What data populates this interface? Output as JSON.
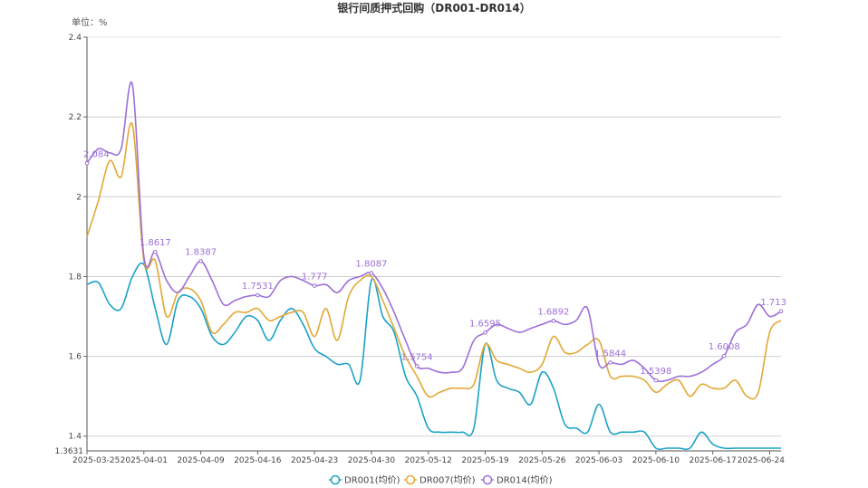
{
  "chart_data": {
    "type": "line",
    "title": "银行间质押式回购（DR001-DR014）",
    "unit_label": "单位：%",
    "ylim": [
      1.3631,
      2.4
    ],
    "y_ticks": [
      1.4,
      1.6,
      1.8,
      2,
      2.2,
      2.4
    ],
    "y_tick_labels": [
      "1.4",
      "1.6",
      "1.8",
      "2",
      "2.2",
      "2.4"
    ],
    "y_min_label": "1.3631",
    "grid": true,
    "legend_position": "bottom",
    "x_tick_labels": [
      "2025-03-25",
      "2025-04-01",
      "2025-04-09",
      "2025-04-16",
      "2025-04-23",
      "2025-04-30",
      "2025-05-12",
      "2025-05-19",
      "2025-05-26",
      "2025-06-03",
      "2025-06-10",
      "2025-06-17",
      "2025-06-24"
    ],
    "n_points": 62,
    "x_tick_index": [
      0,
      5,
      10,
      15,
      20,
      25,
      30,
      35,
      40,
      45,
      50,
      55,
      60
    ],
    "series": [
      {
        "name": "DR001(均价)",
        "color": "#1ba2c7",
        "values": [
          1.78,
          1.785,
          1.73,
          1.72,
          1.8,
          1.83,
          1.72,
          1.63,
          1.74,
          1.75,
          1.72,
          1.65,
          1.63,
          1.66,
          1.7,
          1.69,
          1.64,
          1.69,
          1.72,
          1.68,
          1.62,
          1.6,
          1.58,
          1.58,
          1.54,
          1.79,
          1.7,
          1.66,
          1.55,
          1.5,
          1.42,
          1.41,
          1.41,
          1.41,
          1.42,
          1.63,
          1.54,
          1.52,
          1.51,
          1.48,
          1.56,
          1.52,
          1.43,
          1.42,
          1.41,
          1.48,
          1.41,
          1.41,
          1.41,
          1.41,
          1.37,
          1.37,
          1.37,
          1.37,
          1.41,
          1.38,
          1.37,
          1.37,
          1.37,
          1.37,
          1.37,
          1.37
        ]
      },
      {
        "name": "DR007(均价)",
        "color": "#e2a834",
        "values": [
          1.9,
          1.99,
          2.09,
          2.05,
          2.18,
          1.84,
          1.84,
          1.7,
          1.76,
          1.77,
          1.74,
          1.66,
          1.68,
          1.71,
          1.71,
          1.72,
          1.69,
          1.7,
          1.71,
          1.71,
          1.65,
          1.72,
          1.64,
          1.75,
          1.79,
          1.8,
          1.74,
          1.67,
          1.6,
          1.55,
          1.5,
          1.51,
          1.52,
          1.52,
          1.53,
          1.63,
          1.59,
          1.58,
          1.57,
          1.56,
          1.58,
          1.65,
          1.61,
          1.61,
          1.63,
          1.64,
          1.55,
          1.55,
          1.55,
          1.54,
          1.51,
          1.53,
          1.54,
          1.5,
          1.53,
          1.52,
          1.52,
          1.54,
          1.5,
          1.51,
          1.66,
          1.69
        ]
      },
      {
        "name": "DR014(均价)",
        "color": "#9d6fd8",
        "values": [
          2.084,
          2.12,
          2.11,
          2.12,
          2.28,
          1.85,
          1.8617,
          1.79,
          1.76,
          1.8,
          1.8387,
          1.79,
          1.73,
          1.74,
          1.75,
          1.7531,
          1.75,
          1.79,
          1.8,
          1.79,
          1.777,
          1.78,
          1.76,
          1.79,
          1.8,
          1.8087,
          1.77,
          1.71,
          1.64,
          1.5754,
          1.57,
          1.56,
          1.56,
          1.57,
          1.64,
          1.6595,
          1.68,
          1.67,
          1.66,
          1.67,
          1.68,
          1.6892,
          1.68,
          1.69,
          1.72,
          1.58,
          1.5844,
          1.58,
          1.59,
          1.57,
          1.5398,
          1.54,
          1.55,
          1.55,
          1.56,
          1.58,
          1.6008,
          1.66,
          1.68,
          1.73,
          1.7,
          1.713
        ]
      }
    ],
    "data_labels": [
      {
        "series": 2,
        "index": 0,
        "text": "2.084"
      },
      {
        "series": 2,
        "index": 6,
        "text": "1.8617"
      },
      {
        "series": 2,
        "index": 10,
        "text": "1.8387"
      },
      {
        "series": 2,
        "index": 15,
        "text": "1.7531"
      },
      {
        "series": 2,
        "index": 20,
        "text": "1.777"
      },
      {
        "series": 2,
        "index": 25,
        "text": "1.8087"
      },
      {
        "series": 2,
        "index": 29,
        "text": "1.5754"
      },
      {
        "series": 2,
        "index": 35,
        "text": "1.6595"
      },
      {
        "series": 2,
        "index": 41,
        "text": "1.6892"
      },
      {
        "series": 2,
        "index": 46,
        "text": "1.5844"
      },
      {
        "series": 2,
        "index": 50,
        "text": "1.5398"
      },
      {
        "series": 2,
        "index": 56,
        "text": "1.6008"
      },
      {
        "series": 2,
        "index": 61,
        "text": "1.713"
      }
    ]
  }
}
